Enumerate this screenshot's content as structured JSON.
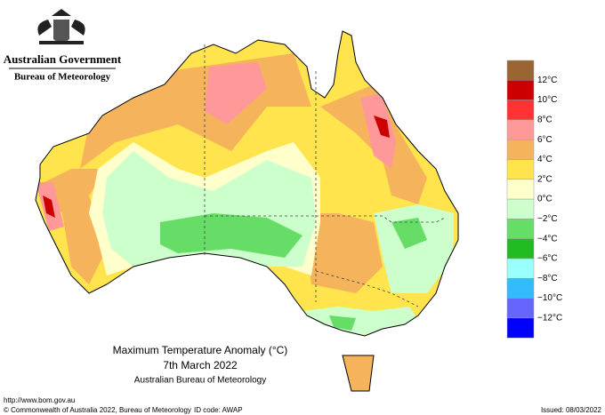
{
  "header": {
    "government": "Australian Government",
    "agency": "Bureau of Meteorology"
  },
  "map": {
    "title": "Maximum Temperature Anomaly (°C)",
    "date": "7th March 2022",
    "source": "Australian Bureau of Meteorology"
  },
  "legend": {
    "labels": [
      "12°C",
      "10°C",
      "8°C",
      "6°C",
      "4°C",
      "2°C",
      "0°C",
      "−2°C",
      "−4°C",
      "−6°C",
      "−8°C",
      "−10°C",
      "−12°C"
    ],
    "colors": [
      "#996633",
      "#cc0000",
      "#ff3333",
      "#ff9999",
      "#f5b35c",
      "#ffe44d",
      "#ffffcc",
      "#ccffcc",
      "#66dd66",
      "#22bb22",
      "#99ffff",
      "#33bbff",
      "#6666ff",
      "#0000ff"
    ]
  },
  "footer": {
    "url": "http://www.bom.gov.au",
    "copyright": "© Commonwealth of Australia 2022, Bureau of Meteorology",
    "id_code": "ID code: AWAP",
    "issued": "Issued: 08/03/2022"
  }
}
